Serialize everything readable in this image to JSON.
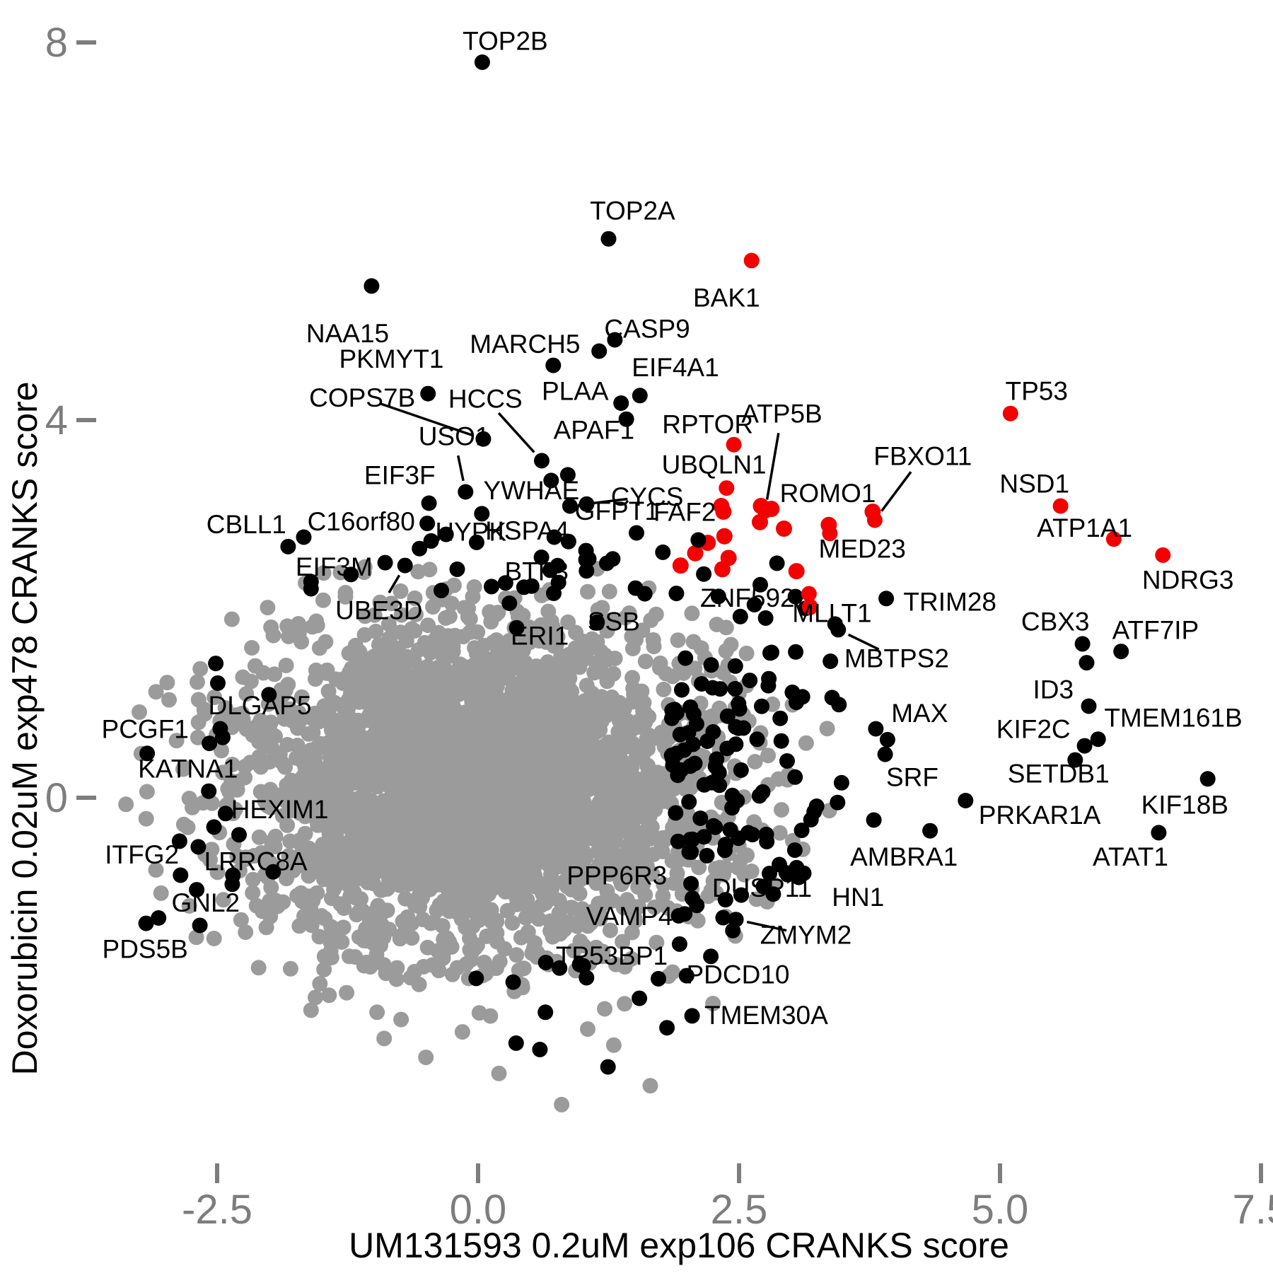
{
  "chart_data": {
    "type": "scatter",
    "title": "",
    "xlabel": "UM131593 0.2uM exp106 CRANKS score",
    "ylabel": "Doxorubicin 0.02uM exp478 CRANKS score",
    "x_ticks": [
      {
        "v": -2.5,
        "label": "-2.5"
      },
      {
        "v": 0,
        "label": "0.0"
      },
      {
        "v": 2.5,
        "label": "2.5"
      },
      {
        "v": 5,
        "label": "5.0"
      },
      {
        "v": 7.5,
        "label": "7.5"
      }
    ],
    "y_ticks": [
      {
        "v": 0,
        "label": "0"
      },
      {
        "v": 4,
        "label": "4"
      },
      {
        "v": 8,
        "label": "8"
      }
    ],
    "x_range": [
      -3.9,
      7.6
    ],
    "y_range": [
      -3.6,
      8.1
    ],
    "grid": false,
    "legend": "none",
    "colors": {
      "gray": "#9b9b9b",
      "black": "#000000",
      "red": "#f30000",
      "tick": "#7d7d7d"
    },
    "labeled_points": [
      {
        "label": "TOP2B",
        "x": 0.04,
        "y": 7.79,
        "color": "black",
        "lx": 0.26,
        "ly": 8.02,
        "leader": false
      },
      {
        "label": "TOP2A",
        "x": 1.25,
        "y": 5.92,
        "color": "black",
        "lx": 1.48,
        "ly": 6.22,
        "leader": false
      },
      {
        "label": "BAK1",
        "x": 2.62,
        "y": 5.69,
        "color": "red",
        "lx": 2.38,
        "ly": 5.3,
        "leader": false
      },
      {
        "label": "NAA15",
        "x": -1.02,
        "y": 5.42,
        "color": "black",
        "lx": -1.25,
        "ly": 4.92,
        "leader": false
      },
      {
        "label": "CASP9",
        "x": 1.31,
        "y": 4.85,
        "color": "black",
        "lx": 1.62,
        "ly": 4.97,
        "leader": false
      },
      {
        "label": "MARCH5",
        "x": 0.72,
        "y": 4.58,
        "color": "black",
        "lx": 0.45,
        "ly": 4.81,
        "leader": false
      },
      {
        "label": "PKMYT1",
        "x": -0.48,
        "y": 4.28,
        "color": "black",
        "lx": -0.83,
        "ly": 4.65,
        "leader": false
      },
      {
        "label": "EIF4A1",
        "x": 1.55,
        "y": 4.26,
        "color": "black",
        "lx": 1.89,
        "ly": 4.56,
        "leader": false
      },
      {
        "label": "COPS7B",
        "x": 0.05,
        "y": 3.8,
        "color": "black",
        "lx": -1.11,
        "ly": 4.24,
        "leader": true
      },
      {
        "label": "PLAA",
        "x": 1.37,
        "y": 4.18,
        "color": "black",
        "lx": 0.93,
        "ly": 4.31,
        "leader": false
      },
      {
        "label": "HCCS",
        "x": 0.61,
        "y": 3.57,
        "color": "black",
        "lx": 0.07,
        "ly": 4.23,
        "leader": true
      },
      {
        "label": "APAF1",
        "x": 1.42,
        "y": 4.01,
        "color": "black",
        "lx": 1.11,
        "ly": 3.9,
        "leader": false
      },
      {
        "label": "RPTOR",
        "x": 2.45,
        "y": 3.74,
        "color": "red",
        "lx": 2.2,
        "ly": 3.96,
        "leader": false
      },
      {
        "label": "USO1",
        "x": -0.12,
        "y": 3.24,
        "color": "black",
        "lx": -0.23,
        "ly": 3.83,
        "leader": true
      },
      {
        "label": "YWHAE",
        "x": 0.7,
        "y": 3.36,
        "color": "black",
        "lx": 0.51,
        "ly": 3.26,
        "leader": false
      },
      {
        "label": "CYCS",
        "x": 0.88,
        "y": 3.09,
        "color": "black",
        "lx": 1.62,
        "ly": 3.19,
        "leader": true
      },
      {
        "label": "UBQLN1",
        "x": 2.38,
        "y": 3.28,
        "color": "red",
        "lx": 2.26,
        "ly": 3.53,
        "leader": false
      },
      {
        "label": "EIF3F",
        "x": -0.47,
        "y": 3.12,
        "color": "black",
        "lx": -0.75,
        "ly": 3.42,
        "leader": false
      },
      {
        "label": "ATP5B",
        "x": 2.75,
        "y": 3.04,
        "color": "red",
        "lx": 2.91,
        "ly": 4.07,
        "leader": true
      },
      {
        "label": "ROMO1",
        "x": 3.37,
        "y": 2.8,
        "color": "red",
        "lx": 3.35,
        "ly": 3.23,
        "leader": false
      },
      {
        "label": "FBXO11",
        "x": 3.8,
        "y": 2.94,
        "color": "red",
        "lx": 4.26,
        "ly": 3.62,
        "leader": true
      },
      {
        "label": "TP53",
        "x": 5.1,
        "y": 4.07,
        "color": "red",
        "lx": 5.35,
        "ly": 4.31,
        "leader": false
      },
      {
        "label": "NSD1",
        "x": 5.58,
        "y": 3.09,
        "color": "red",
        "lx": 5.33,
        "ly": 3.33,
        "leader": false
      },
      {
        "label": "ATP1A1",
        "x": 6.09,
        "y": 2.74,
        "color": "red",
        "lx": 5.81,
        "ly": 2.86,
        "leader": false
      },
      {
        "label": "NDRG3",
        "x": 6.56,
        "y": 2.57,
        "color": "red",
        "lx": 6.8,
        "ly": 2.31,
        "leader": false
      },
      {
        "label": "CBLL1",
        "x": -1.82,
        "y": 2.66,
        "color": "black",
        "lx": -2.22,
        "ly": 2.9,
        "leader": false
      },
      {
        "label": "C16orf80",
        "x": -1.67,
        "y": 2.76,
        "color": "black",
        "lx": -1.12,
        "ly": 2.93,
        "leader": false
      },
      {
        "label": "HYPK",
        "x": -0.45,
        "y": 2.72,
        "color": "black",
        "lx": -0.07,
        "ly": 2.82,
        "leader": false
      },
      {
        "label": "HSPA4",
        "x": 0.73,
        "y": 2.76,
        "color": "black",
        "lx": 0.47,
        "ly": 2.83,
        "leader": false
      },
      {
        "label": "GFPT1",
        "x": 1.04,
        "y": 3.11,
        "color": "black",
        "lx": 1.33,
        "ly": 3.04,
        "leader": false
      },
      {
        "label": "FAF2",
        "x": 2.11,
        "y": 2.73,
        "color": "black",
        "lx": 1.98,
        "ly": 3.03,
        "leader": false
      },
      {
        "label": "EIF3M",
        "x": -0.89,
        "y": 2.49,
        "color": "black",
        "lx": -1.38,
        "ly": 2.45,
        "leader": false
      },
      {
        "label": "UBE3D",
        "x": -0.7,
        "y": 2.46,
        "color": "black",
        "lx": -0.95,
        "ly": 1.99,
        "leader": true
      },
      {
        "label": "BTF3",
        "x": 0.77,
        "y": 2.28,
        "color": "black",
        "lx": 0.56,
        "ly": 2.4,
        "leader": false
      },
      {
        "label": "ERI1",
        "x": 0.37,
        "y": 1.8,
        "color": "black",
        "lx": 0.59,
        "ly": 1.72,
        "leader": false
      },
      {
        "label": "SSB",
        "x": 1.14,
        "y": 1.86,
        "color": "black",
        "lx": 1.3,
        "ly": 1.87,
        "leader": false
      },
      {
        "label": "ZNF592",
        "x": 3.04,
        "y": 2.13,
        "color": "black",
        "lx": 2.58,
        "ly": 2.12,
        "leader": false
      },
      {
        "label": "MED23",
        "x": 3.17,
        "y": 2.16,
        "color": "red",
        "lx": 3.68,
        "ly": 2.64,
        "leader": false
      },
      {
        "label": "TRIM28",
        "x": 3.91,
        "y": 2.11,
        "color": "black",
        "lx": 4.52,
        "ly": 2.08,
        "leader": false
      },
      {
        "label": "MLLT1",
        "x": 3.42,
        "y": 1.84,
        "color": "black",
        "lx": 3.39,
        "ly": 1.96,
        "leader": false
      },
      {
        "label": "MBTPS2",
        "x": 3.45,
        "y": 1.78,
        "color": "black",
        "lx": 4.01,
        "ly": 1.48,
        "leader": true
      },
      {
        "label": "CBX3",
        "x": 5.79,
        "y": 1.63,
        "color": "black",
        "lx": 5.53,
        "ly": 1.87,
        "leader": false
      },
      {
        "label": "ATF7IP",
        "x": 6.16,
        "y": 1.55,
        "color": "black",
        "lx": 6.49,
        "ly": 1.78,
        "leader": false
      },
      {
        "label": "ID3",
        "x": 5.85,
        "y": 0.97,
        "color": "black",
        "lx": 5.51,
        "ly": 1.15,
        "leader": false
      },
      {
        "label": "TMEM161B",
        "x": 5.94,
        "y": 0.62,
        "color": "black",
        "lx": 6.66,
        "ly": 0.85,
        "leader": false
      },
      {
        "label": "KIF2C",
        "x": 5.81,
        "y": 0.55,
        "color": "black",
        "lx": 5.32,
        "ly": 0.73,
        "leader": false
      },
      {
        "label": "SETDB1",
        "x": 5.72,
        "y": 0.4,
        "color": "black",
        "lx": 5.56,
        "ly": 0.26,
        "leader": false
      },
      {
        "label": "MAX",
        "x": 3.81,
        "y": 0.73,
        "color": "black",
        "lx": 4.23,
        "ly": 0.9,
        "leader": false
      },
      {
        "label": "SRF",
        "x": 3.9,
        "y": 0.46,
        "color": "black",
        "lx": 4.16,
        "ly": 0.22,
        "leader": false
      },
      {
        "label": "PRKAR1A",
        "x": 4.67,
        "y": -0.03,
        "color": "black",
        "lx": 5.38,
        "ly": -0.18,
        "leader": false
      },
      {
        "label": "KIF18B",
        "x": 6.99,
        "y": 0.2,
        "color": "black",
        "lx": 6.77,
        "ly": -0.07,
        "leader": false
      },
      {
        "label": "ATAT1",
        "x": 6.52,
        "y": -0.37,
        "color": "black",
        "lx": 6.25,
        "ly": -0.62,
        "leader": false
      },
      {
        "label": "AMBRA1",
        "x": 4.33,
        "y": -0.35,
        "color": "black",
        "lx": 4.08,
        "ly": -0.62,
        "leader": false
      },
      {
        "label": "HN1",
        "x": 3.12,
        "y": -0.8,
        "color": "black",
        "lx": 3.64,
        "ly": -1.05,
        "leader": false
      },
      {
        "label": "DLGAP5",
        "x": -2.47,
        "y": 0.73,
        "color": "black",
        "lx": -2.09,
        "ly": 0.98,
        "leader": false
      },
      {
        "label": "PCGF1",
        "x": -3.17,
        "y": 0.47,
        "color": "black",
        "lx": -3.19,
        "ly": 0.73,
        "leader": false
      },
      {
        "label": "KATNA1",
        "x": -2.58,
        "y": 0.07,
        "color": "black",
        "lx": -2.78,
        "ly": 0.31,
        "leader": false
      },
      {
        "label": "HEXIM1",
        "x": -2.53,
        "y": -0.31,
        "color": "black",
        "lx": -1.9,
        "ly": -0.12,
        "leader": false
      },
      {
        "label": "ITFG2",
        "x": -2.86,
        "y": -0.46,
        "color": "black",
        "lx": -3.22,
        "ly": -0.6,
        "leader": false
      },
      {
        "label": "LRRC8A",
        "x": -2.68,
        "y": -0.52,
        "color": "black",
        "lx": -2.13,
        "ly": -0.67,
        "leader": false
      },
      {
        "label": "GNL2",
        "x": -2.85,
        "y": -0.82,
        "color": "black",
        "lx": -2.61,
        "ly": -1.11,
        "leader": false
      },
      {
        "label": "PDS5B",
        "x": -3.18,
        "y": -1.33,
        "color": "black",
        "lx": -3.19,
        "ly": -1.6,
        "leader": false
      },
      {
        "label": "PPP6R3",
        "x": 2.04,
        "y": -0.91,
        "color": "black",
        "lx": 1.33,
        "ly": -0.82,
        "leader": false
      },
      {
        "label": "VAMP4",
        "x": 1.98,
        "y": -1.23,
        "color": "black",
        "lx": 1.45,
        "ly": -1.25,
        "leader": false
      },
      {
        "label": "TP53BP1",
        "x": 1.93,
        "y": -1.55,
        "color": "black",
        "lx": 1.28,
        "ly": -1.67,
        "leader": false
      },
      {
        "label": "DUSP11",
        "x": 2.37,
        "y": -1.08,
        "color": "black",
        "lx": 2.72,
        "ly": -0.95,
        "leader": false
      },
      {
        "label": "ZMYM2",
        "x": 2.47,
        "y": -1.29,
        "color": "black",
        "lx": 3.14,
        "ly": -1.45,
        "leader": true
      },
      {
        "label": "PDCD10",
        "x": 2.23,
        "y": -1.68,
        "color": "black",
        "lx": 2.49,
        "ly": -1.87,
        "leader": false
      },
      {
        "label": "TMEM30A",
        "x": 2.05,
        "y": -2.31,
        "color": "black",
        "lx": 2.76,
        "ly": -2.3,
        "leader": false
      }
    ],
    "extra_red_points": [
      [
        2.33,
        3.09
      ],
      [
        2.71,
        3.09
      ],
      [
        2.81,
        3.06
      ],
      [
        2.7,
        2.92
      ],
      [
        2.93,
        2.85
      ],
      [
        3.36,
        2.89
      ],
      [
        3.78,
        3.03
      ],
      [
        2.2,
        2.7
      ],
      [
        2.08,
        2.59
      ],
      [
        1.94,
        2.46
      ],
      [
        2.4,
        2.54
      ],
      [
        2.34,
        2.42
      ],
      [
        3.05,
        2.4
      ],
      [
        2.35,
        3.03
      ],
      [
        2.36,
        2.77
      ],
      [
        3.18,
        2.02
      ]
    ],
    "extra_black_points": [
      [
        1.16,
        4.73
      ],
      [
        0.86,
        3.42
      ],
      [
        5.83,
        1.43
      ],
      [
        0.3,
        2.06
      ],
      [
        -0.2,
        2.42
      ],
      [
        1.77,
        2.6
      ],
      [
        1.06,
        2.53
      ],
      [
        0.44,
        2.23
      ]
    ],
    "gray_outlier_points": [
      [
        0.8,
        -3.25
      ],
      [
        -0.9,
        -2.55
      ],
      [
        -0.5,
        -2.75
      ],
      [
        1.3,
        -2.62
      ],
      [
        0.2,
        -2.92
      ],
      [
        1.05,
        -2.45
      ],
      [
        -1.6,
        -2.25
      ],
      [
        2.25,
        -2.18
      ],
      [
        1.65,
        -3.05
      ],
      [
        -0.15,
        -2.48
      ]
    ],
    "cloud": {
      "seed": 42,
      "core_n": 3000,
      "core_cx": -0.05,
      "core_cy": 0.12,
      "core_sx": 1.08,
      "core_sy": 0.82,
      "core_rmax": 2.65,
      "halo_n": 170,
      "halo_rmin": 2.3,
      "halo_rmax": 3.25,
      "black_fan_n": 120,
      "black_top_n": 26,
      "black_left_n": 13,
      "black_bottom_n": 14
    }
  }
}
